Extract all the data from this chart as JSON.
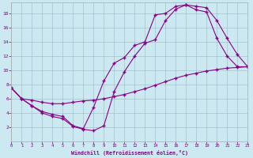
{
  "xlabel": "Windchill (Refroidissement éolien,°C)",
  "bg_color": "#cce8f0",
  "line_color": "#880088",
  "grid_color": "#99bbcc",
  "xlim": [
    0,
    23
  ],
  "ylim": [
    0,
    19.5
  ],
  "xticks": [
    0,
    1,
    2,
    3,
    4,
    5,
    6,
    7,
    8,
    9,
    10,
    11,
    12,
    13,
    14,
    15,
    16,
    17,
    18,
    19,
    20,
    21,
    22,
    23
  ],
  "yticks": [
    2,
    4,
    6,
    8,
    10,
    12,
    14,
    16,
    18
  ],
  "line1_x": [
    0,
    1,
    2,
    3,
    4,
    5,
    6,
    7,
    8,
    9,
    10,
    11,
    12,
    13,
    14,
    15,
    16,
    17,
    18,
    19,
    20,
    21,
    22,
    23
  ],
  "line1_y": [
    7.5,
    6.0,
    5.0,
    4.2,
    3.8,
    3.5,
    2.2,
    1.8,
    4.8,
    8.5,
    11.0,
    11.8,
    13.5,
    14.0,
    17.8,
    18.0,
    19.0,
    19.2,
    18.5,
    18.2,
    14.5,
    12.0,
    10.5,
    10.5
  ],
  "line2_x": [
    0,
    1,
    2,
    3,
    4,
    5,
    6,
    7,
    8,
    9,
    10,
    11,
    12,
    13,
    14,
    15,
    16,
    17,
    18,
    19,
    20,
    21,
    22,
    23
  ],
  "line2_y": [
    7.5,
    6.0,
    5.0,
    4.0,
    3.5,
    3.2,
    2.1,
    1.7,
    1.5,
    2.2,
    7.0,
    9.8,
    12.0,
    13.8,
    14.3,
    17.0,
    18.6,
    19.2,
    19.0,
    18.8,
    17.0,
    14.5,
    12.2,
    10.5
  ],
  "line3_x": [
    0,
    1,
    2,
    3,
    4,
    5,
    6,
    7,
    8,
    9,
    10,
    11,
    12,
    13,
    14,
    15,
    16,
    17,
    18,
    19,
    20,
    21,
    22,
    23
  ],
  "line3_y": [
    7.5,
    6.0,
    5.8,
    5.5,
    5.3,
    5.3,
    5.5,
    5.7,
    5.8,
    6.0,
    6.3,
    6.6,
    7.0,
    7.4,
    7.9,
    8.4,
    8.9,
    9.3,
    9.6,
    9.9,
    10.1,
    10.3,
    10.4,
    10.5
  ]
}
